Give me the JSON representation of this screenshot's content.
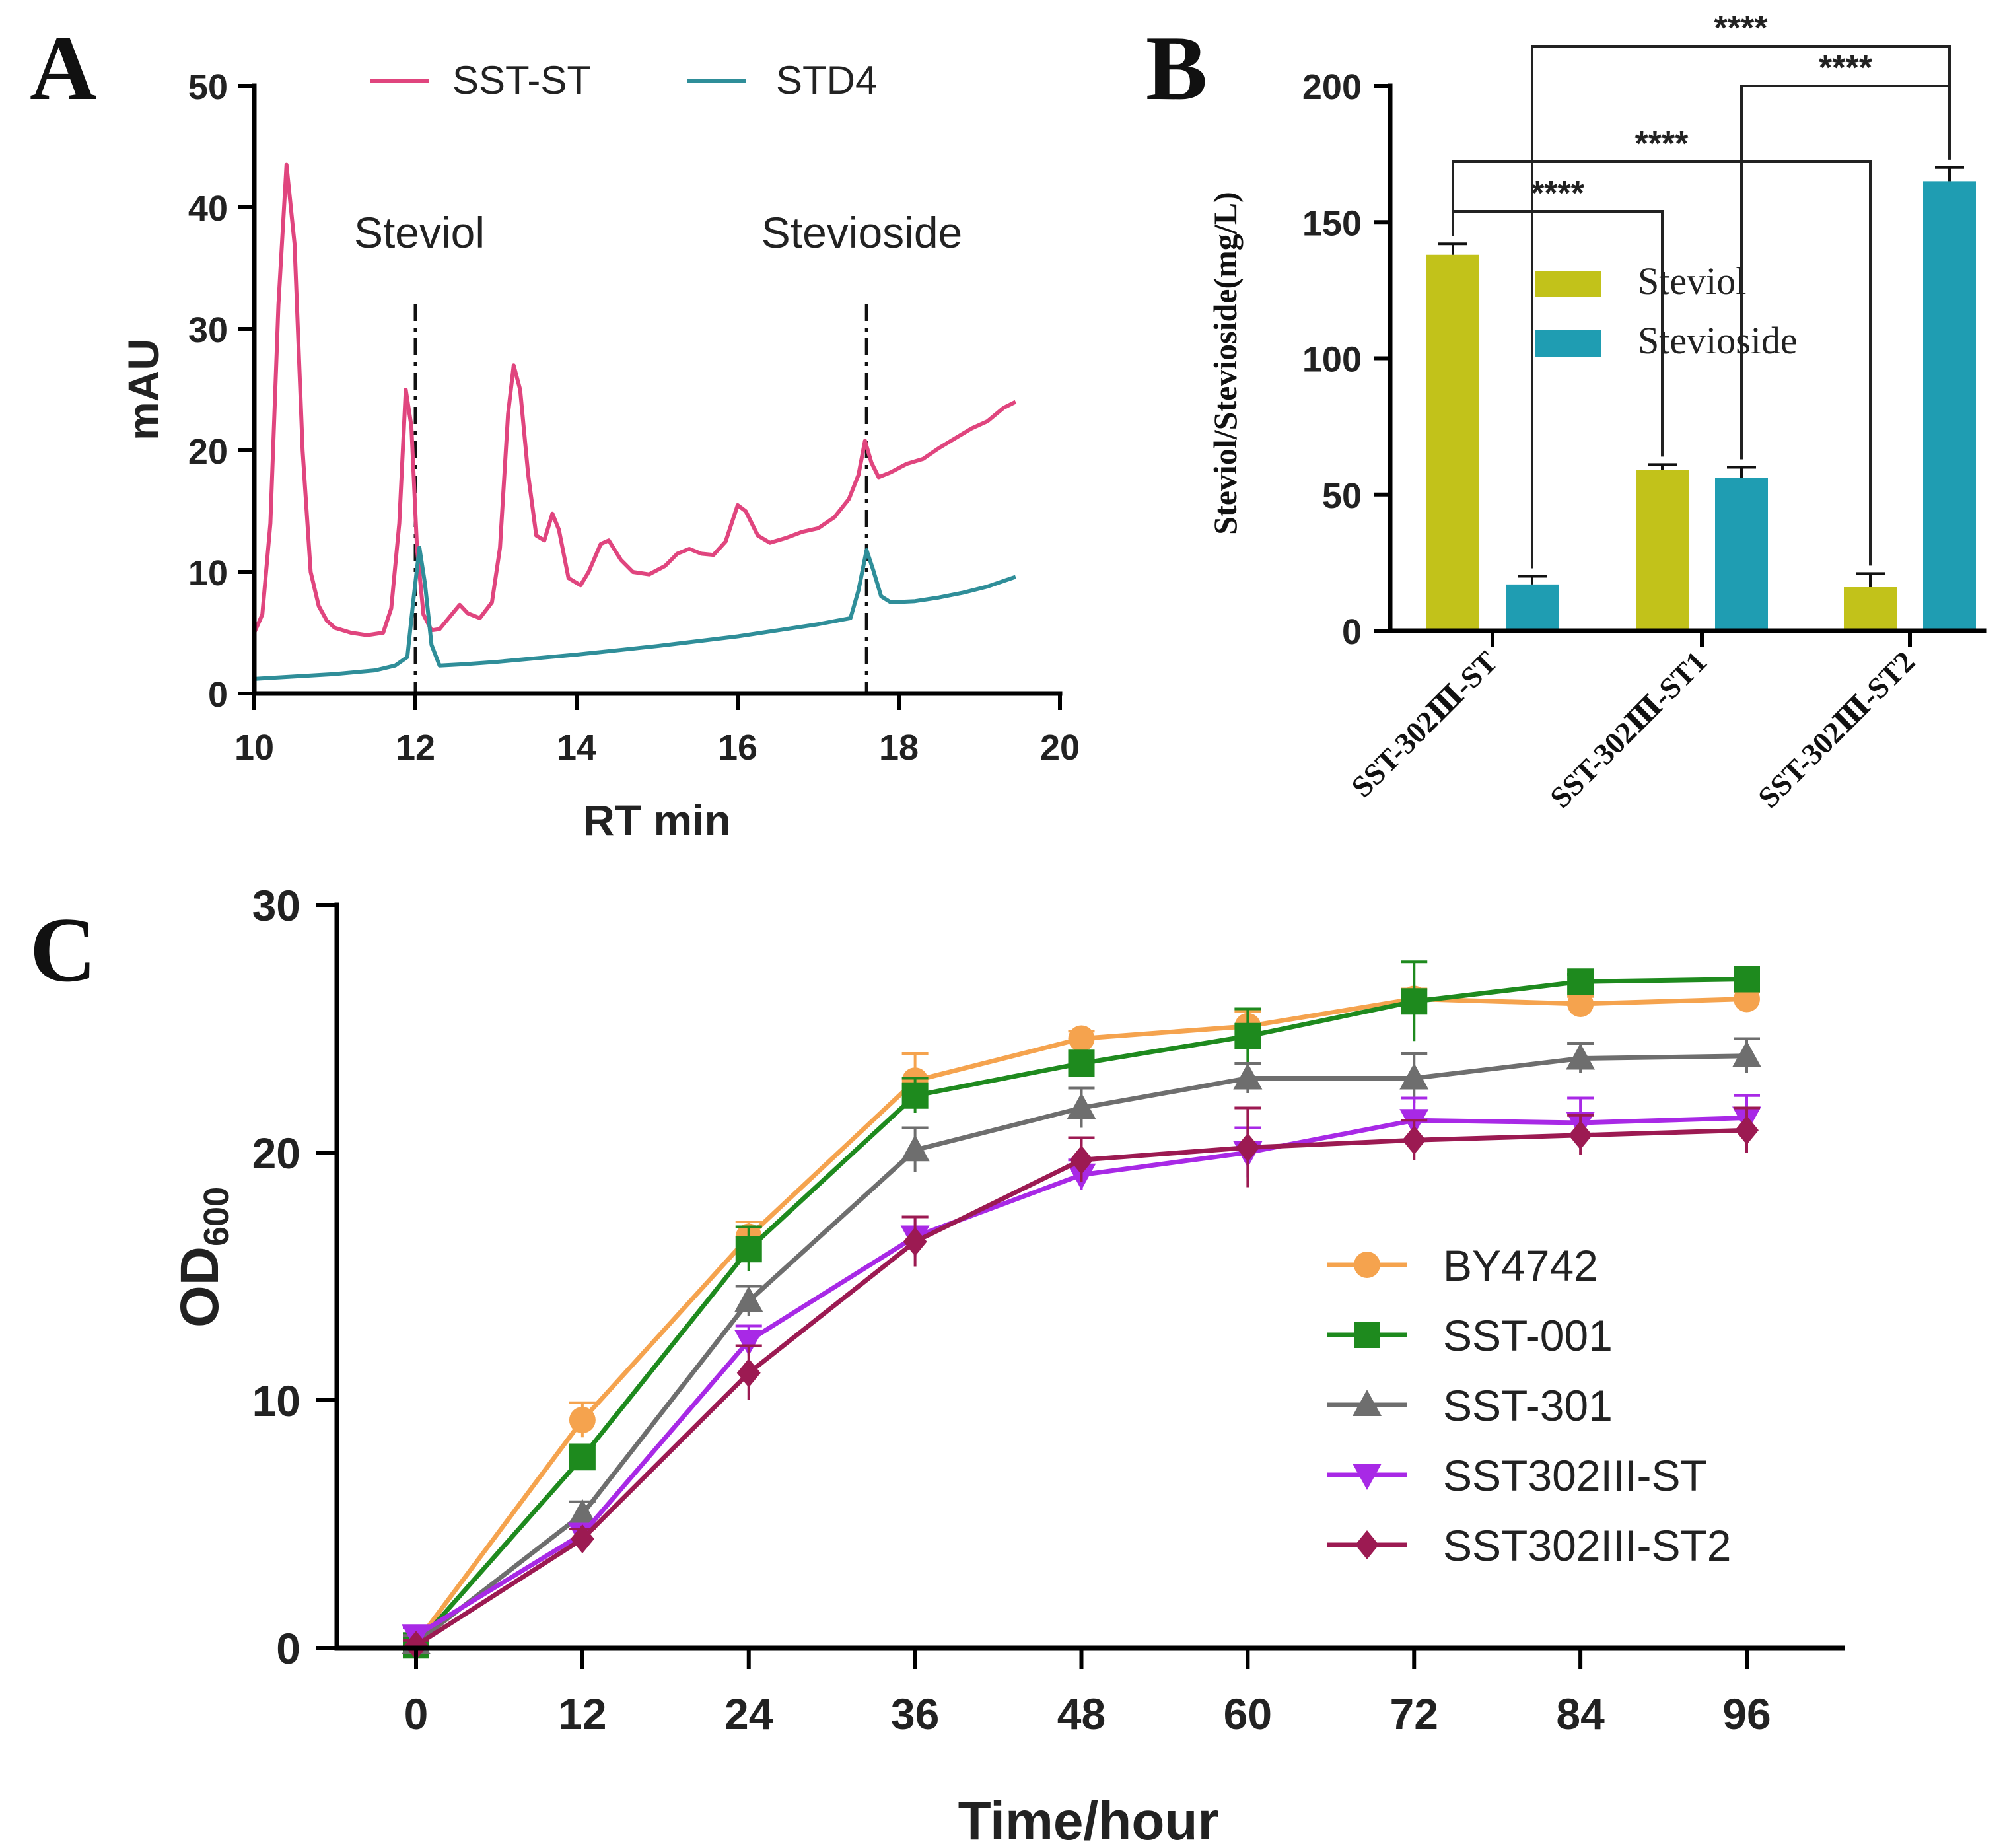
{
  "panels": {
    "a": "A",
    "b": "B",
    "c": "C"
  },
  "chart_data": [
    {
      "id": "A",
      "type": "line",
      "title": "",
      "xlabel": "RT min",
      "ylabel": "mAU",
      "xlim": [
        10,
        20
      ],
      "ylim": [
        0,
        50
      ],
      "xticks": [
        10,
        12,
        14,
        16,
        18,
        20
      ],
      "yticks": [
        0,
        10,
        20,
        30,
        40,
        50
      ],
      "legend_position": "top",
      "annotations": [
        {
          "text": "Steviol",
          "x": 12.1,
          "y": 37.5
        },
        {
          "text": "Stevioside",
          "x": 17.6,
          "y": 37.5
        }
      ],
      "reference_lines": [
        12.0,
        17.6
      ],
      "series": [
        {
          "name": "SST-ST",
          "color": "#e0457e",
          "points": [
            [
              10.0,
              5.0
            ],
            [
              10.1,
              6.5
            ],
            [
              10.2,
              14
            ],
            [
              10.3,
              32
            ],
            [
              10.4,
              43.5
            ],
            [
              10.5,
              37
            ],
            [
              10.6,
              20
            ],
            [
              10.7,
              10
            ],
            [
              10.8,
              7.2
            ],
            [
              10.9,
              6.0
            ],
            [
              11.0,
              5.4
            ],
            [
              11.2,
              5.0
            ],
            [
              11.4,
              4.8
            ],
            [
              11.6,
              5.0
            ],
            [
              11.7,
              7
            ],
            [
              11.8,
              14
            ],
            [
              11.88,
              25
            ],
            [
              11.95,
              22
            ],
            [
              12.02,
              12
            ],
            [
              12.1,
              6.5
            ],
            [
              12.2,
              5.2
            ],
            [
              12.3,
              5.3
            ],
            [
              12.45,
              6.5
            ],
            [
              12.55,
              7.3
            ],
            [
              12.65,
              6.6
            ],
            [
              12.8,
              6.2
            ],
            [
              12.95,
              7.5
            ],
            [
              13.05,
              12
            ],
            [
              13.15,
              23
            ],
            [
              13.22,
              27
            ],
            [
              13.3,
              25
            ],
            [
              13.4,
              18
            ],
            [
              13.5,
              13
            ],
            [
              13.6,
              12.6
            ],
            [
              13.7,
              14.8
            ],
            [
              13.78,
              13.5
            ],
            [
              13.9,
              9.5
            ],
            [
              14.05,
              8.9
            ],
            [
              14.15,
              10
            ],
            [
              14.3,
              12.3
            ],
            [
              14.4,
              12.6
            ],
            [
              14.55,
              11
            ],
            [
              14.7,
              10
            ],
            [
              14.9,
              9.8
            ],
            [
              15.1,
              10.5
            ],
            [
              15.25,
              11.5
            ],
            [
              15.4,
              11.9
            ],
            [
              15.55,
              11.5
            ],
            [
              15.7,
              11.4
            ],
            [
              15.85,
              12.5
            ],
            [
              16.0,
              15.5
            ],
            [
              16.1,
              15
            ],
            [
              16.25,
              13
            ],
            [
              16.4,
              12.4
            ],
            [
              16.6,
              12.8
            ],
            [
              16.8,
              13.3
            ],
            [
              17.0,
              13.6
            ],
            [
              17.2,
              14.5
            ],
            [
              17.38,
              16
            ],
            [
              17.5,
              18
            ],
            [
              17.58,
              20.8
            ],
            [
              17.66,
              19
            ],
            [
              17.75,
              17.8
            ],
            [
              17.9,
              18.2
            ],
            [
              18.1,
              18.9
            ],
            [
              18.3,
              19.3
            ],
            [
              18.5,
              20.2
            ],
            [
              18.7,
              21.0
            ],
            [
              18.9,
              21.8
            ],
            [
              19.1,
              22.4
            ],
            [
              19.3,
              23.5
            ],
            [
              19.45,
              24.0
            ]
          ]
        },
        {
          "name": "STD4",
          "color": "#2f8e99",
          "points": [
            [
              10.0,
              1.2
            ],
            [
              10.5,
              1.4
            ],
            [
              11.0,
              1.6
            ],
            [
              11.5,
              1.9
            ],
            [
              11.75,
              2.3
            ],
            [
              11.9,
              3.0
            ],
            [
              11.98,
              8
            ],
            [
              12.05,
              12
            ],
            [
              12.12,
              9
            ],
            [
              12.2,
              4
            ],
            [
              12.3,
              2.3
            ],
            [
              12.6,
              2.4
            ],
            [
              13.0,
              2.6
            ],
            [
              13.5,
              2.9
            ],
            [
              14.0,
              3.2
            ],
            [
              14.5,
              3.55
            ],
            [
              15.0,
              3.9
            ],
            [
              15.5,
              4.3
            ],
            [
              16.0,
              4.7
            ],
            [
              16.5,
              5.2
            ],
            [
              17.0,
              5.7
            ],
            [
              17.4,
              6.2
            ],
            [
              17.5,
              8.5
            ],
            [
              17.6,
              11.8
            ],
            [
              17.68,
              10.2
            ],
            [
              17.78,
              8.0
            ],
            [
              17.9,
              7.5
            ],
            [
              18.2,
              7.6
            ],
            [
              18.5,
              7.9
            ],
            [
              18.8,
              8.3
            ],
            [
              19.1,
              8.8
            ],
            [
              19.45,
              9.6
            ]
          ]
        }
      ]
    },
    {
      "id": "B",
      "type": "bar",
      "title": "",
      "xlabel": "",
      "ylabel": "Steviol/Stevioside(mg/L)",
      "ylim": [
        0,
        200
      ],
      "yticks": [
        0,
        50,
        100,
        150,
        200
      ],
      "legend_position": "center",
      "categories": [
        "SST-302Ⅲ-ST",
        "SST-302Ⅲ-ST1",
        "SST-302Ⅲ-ST2"
      ],
      "series": [
        {
          "name": "Steviol",
          "color": "#c2c21a",
          "values": [
            138,
            59,
            16
          ],
          "errors": [
            4,
            2,
            5
          ]
        },
        {
          "name": "Stevioside",
          "color": "#1f9db2",
          "values": [
            17,
            56,
            165
          ],
          "errors": [
            3,
            4,
            5
          ]
        }
      ],
      "significance": [
        {
          "from": "Steviol-0",
          "to": "Steviol-1",
          "label": "****"
        },
        {
          "from": "Steviol-0",
          "to": "Steviol-2",
          "label": "****"
        },
        {
          "from": "Stevioside-1",
          "to": "Stevioside-2",
          "label": "****"
        },
        {
          "from": "Stevioside-0",
          "to": "Stevioside-2",
          "label": "****"
        }
      ]
    },
    {
      "id": "C",
      "type": "line",
      "title": "",
      "xlabel": "Time/hour",
      "ylabel_main": "OD",
      "ylabel_sub": "600",
      "xlim": [
        -6,
        102
      ],
      "ylim": [
        0,
        30
      ],
      "xticks": [
        0,
        12,
        24,
        36,
        48,
        60,
        72,
        84,
        96
      ],
      "yticks": [
        0,
        10,
        20,
        30
      ],
      "legend_position": "right",
      "x": [
        0,
        12,
        24,
        36,
        48,
        60,
        72,
        84,
        96
      ],
      "series": [
        {
          "name": "BY4742",
          "color": "#f5a34e",
          "marker": "circle",
          "values": [
            0.2,
            9.2,
            16.6,
            22.9,
            24.6,
            25.1,
            26.2,
            26.0,
            26.2
          ],
          "errors": [
            0.2,
            0.7,
            0.6,
            1.1,
            0.3,
            0.6,
            0.4,
            0.3,
            0.3
          ]
        },
        {
          "name": "SST-001",
          "color": "#1e8a1e",
          "marker": "square",
          "values": [
            0.1,
            7.7,
            16.1,
            22.3,
            23.6,
            24.7,
            26.1,
            26.9,
            27.0
          ],
          "errors": [
            0.2,
            0.5,
            0.9,
            0.7,
            0.5,
            1.1,
            1.6,
            0.3,
            0.3
          ]
        },
        {
          "name": "SST-301",
          "color": "#6e6e6e",
          "marker": "triangle-up",
          "values": [
            0.2,
            5.4,
            14.0,
            20.1,
            21.8,
            23.0,
            23.0,
            23.8,
            23.9
          ],
          "errors": [
            0.3,
            0.5,
            0.6,
            0.9,
            0.8,
            0.6,
            1.0,
            0.6,
            0.7
          ]
        },
        {
          "name": "SST302III-ST",
          "color": "#a829e6",
          "marker": "triangle-down",
          "values": [
            0.5,
            4.6,
            12.4,
            16.6,
            19.1,
            20.0,
            21.3,
            21.2,
            21.4
          ],
          "errors": [
            0.3,
            0.4,
            0.6,
            0.8,
            0.6,
            1.0,
            0.9,
            1.0,
            0.9
          ]
        },
        {
          "name": "SST302III-ST2",
          "color": "#9c1a52",
          "marker": "diamond",
          "values": [
            0.1,
            4.4,
            11.1,
            16.4,
            19.7,
            20.2,
            20.5,
            20.7,
            20.9
          ],
          "errors": [
            0.2,
            0.4,
            1.1,
            1.0,
            0.9,
            1.6,
            0.8,
            0.8,
            0.9
          ]
        }
      ]
    }
  ]
}
